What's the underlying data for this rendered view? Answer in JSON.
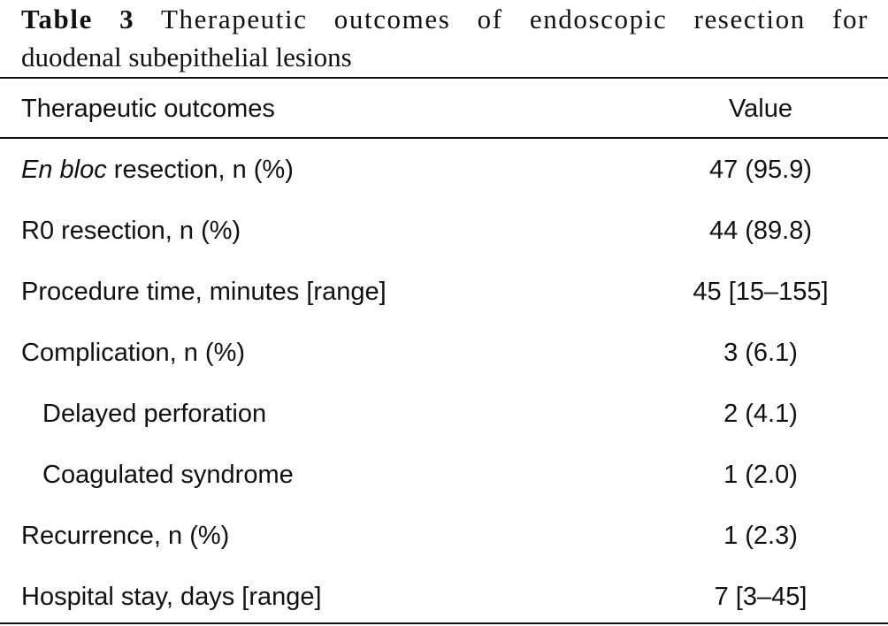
{
  "caption": {
    "label": "Table 3",
    "text_line1": "Therapeutic outcomes of endoscopic resection for",
    "text_line2": "duodenal subepithelial lesions"
  },
  "table": {
    "headers": {
      "outcome": "Therapeutic outcomes",
      "value": "Value"
    },
    "rows": [
      {
        "label_italic": "En bloc",
        "label": " resection, n (%)",
        "value": "47 (95.9)"
      },
      {
        "label": "R0 resection, n (%)",
        "value": "44 (89.8)"
      },
      {
        "label": "Procedure time, minutes [range]",
        "value": "45 [15–155]"
      },
      {
        "label": "Complication, n (%)",
        "value": "3 (6.1)"
      },
      {
        "label": "Delayed perforation",
        "value": "2 (4.1)"
      },
      {
        "label": "Coagulated syndrome",
        "value": "1 (2.0)"
      },
      {
        "label": "Recurrence, n (%)",
        "value": "1 (2.3)"
      },
      {
        "label": "Hospital stay, days [range]",
        "value": "7 [3–45]"
      }
    ]
  }
}
